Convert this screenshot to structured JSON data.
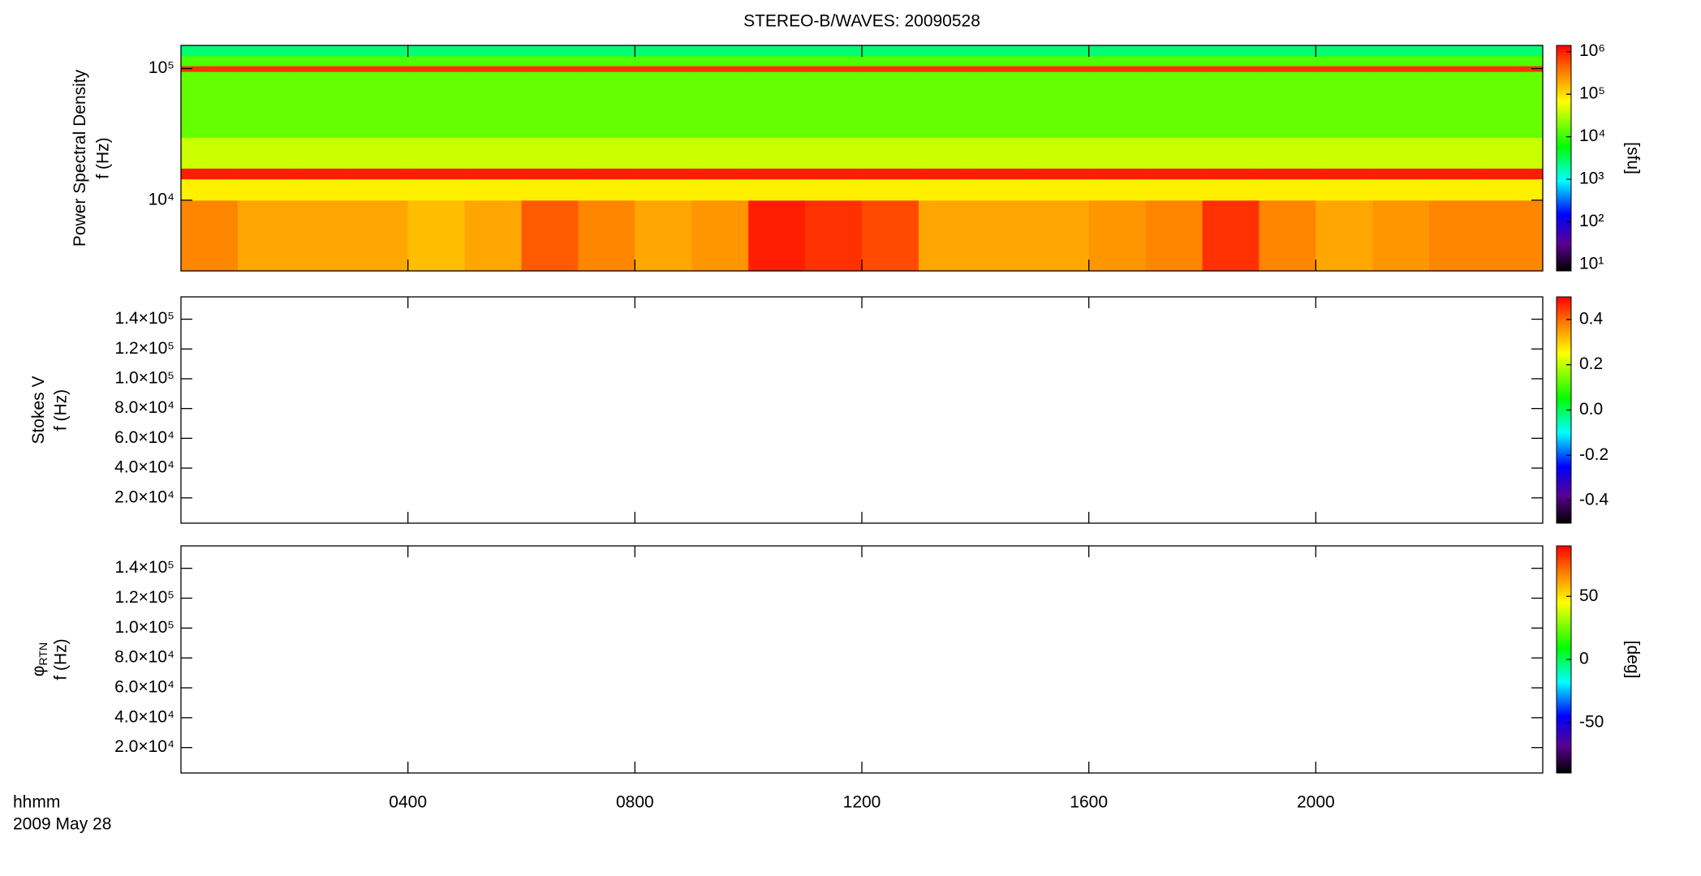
{
  "chart_data": [
    {
      "type": "heatmap",
      "title": "STEREO-B/WAVES: 20090528",
      "ylabel": "Power Spectral Density",
      "ylabel_unit": "f (Hz)",
      "xlim": [
        0,
        24
      ],
      "xticks": [
        4,
        8,
        12,
        16,
        20
      ],
      "ylim": [
        2900,
        150000
      ],
      "ylog": true,
      "yticks": [
        {
          "value": 10000,
          "label": "10⁴"
        },
        {
          "value": 100000,
          "label": "10⁵"
        }
      ],
      "x_edges": [
        0,
        1,
        2,
        3,
        4,
        5,
        6,
        7,
        8,
        9,
        10,
        11,
        12,
        13,
        14,
        15,
        16,
        17,
        18,
        19,
        20,
        21,
        22,
        23,
        24
      ],
      "y_edges": [
        2900,
        10000,
        14500,
        17500,
        30000,
        95000,
        105000,
        125000,
        150000
      ],
      "z": [
        [
          300000,
          200000,
          200000,
          200000,
          150000,
          200000,
          500000,
          300000,
          200000,
          250000,
          1000000,
          800000,
          600000,
          200000,
          200000,
          200000,
          250000,
          300000,
          800000,
          300000,
          200000,
          250000,
          300000,
          300000
        ],
        [
          80000,
          80000,
          80000,
          80000,
          80000,
          80000,
          80000,
          80000,
          80000,
          80000,
          80000,
          80000,
          80000,
          80000,
          80000,
          80000,
          80000,
          80000,
          80000,
          80000,
          80000,
          80000,
          80000,
          80000
        ],
        [
          1000000,
          1000000,
          1000000,
          1000000,
          1000000,
          1000000,
          1000000,
          1000000,
          1000000,
          1000000,
          1000000,
          1000000,
          1000000,
          1000000,
          1000000,
          1000000,
          1000000,
          1000000,
          1000000,
          1000000,
          1000000,
          1000000,
          1000000,
          1000000
        ],
        [
          40000,
          40000,
          40000,
          40000,
          40000,
          40000,
          40000,
          40000,
          40000,
          40000,
          40000,
          40000,
          40000,
          40000,
          40000,
          40000,
          40000,
          40000,
          40000,
          40000,
          40000,
          40000,
          40000,
          40000
        ],
        [
          15000,
          15000,
          15000,
          15000,
          15000,
          15000,
          15000,
          15000,
          15000,
          15000,
          15000,
          15000,
          15000,
          15000,
          15000,
          15000,
          15000,
          15000,
          15000,
          15000,
          15000,
          15000,
          15000,
          15000
        ],
        [
          800000,
          800000,
          800000,
          800000,
          800000,
          800000,
          800000,
          800000,
          800000,
          800000,
          800000,
          800000,
          800000,
          800000,
          800000,
          800000,
          800000,
          800000,
          800000,
          800000,
          800000,
          800000,
          800000,
          800000
        ],
        [
          12000,
          12000,
          12000,
          12000,
          12000,
          12000,
          12000,
          12000,
          12000,
          12000,
          12000,
          12000,
          12000,
          12000,
          12000,
          12000,
          12000,
          12000,
          12000,
          12000,
          12000,
          12000,
          12000,
          12000
        ],
        [
          2500,
          2500,
          2500,
          2500,
          2500,
          2500,
          2500,
          2500,
          2500,
          2500,
          2500,
          2500,
          2500,
          2500,
          2500,
          2500,
          2500,
          2500,
          2500,
          2500,
          2500,
          2500,
          2500,
          2500
        ]
      ],
      "clim": [
        7,
        1400000
      ],
      "clog": true,
      "cticks": [
        {
          "value": 10,
          "label": "10¹"
        },
        {
          "value": 100,
          "label": "10²"
        },
        {
          "value": 1000,
          "label": "10³"
        },
        {
          "value": 10000,
          "label": "10⁴"
        },
        {
          "value": 100000,
          "label": "10⁵"
        },
        {
          "value": 1000000,
          "label": "10⁶"
        }
      ],
      "clabel": "[sfu]"
    },
    {
      "type": "heatmap",
      "ylabel": "Stokes V",
      "ylabel_unit": "f (Hz)",
      "xlim": [
        0,
        24
      ],
      "xticks": [
        4,
        8,
        12,
        16,
        20
      ],
      "ylim": [
        3000,
        155000
      ],
      "yticks": [
        {
          "value": 20000,
          "label": "2.0×10⁴"
        },
        {
          "value": 40000,
          "label": "4.0×10⁴"
        },
        {
          "value": 60000,
          "label": "6.0×10⁴"
        },
        {
          "value": 80000,
          "label": "8.0×10⁴"
        },
        {
          "value": 100000,
          "label": "1.0×10⁵"
        },
        {
          "value": 120000,
          "label": "1.2×10⁵"
        },
        {
          "value": 140000,
          "label": "1.4×10⁵"
        }
      ],
      "clim": [
        -0.5,
        0.5
      ],
      "cticks": [
        -0.4,
        -0.2,
        {
          "value": 0,
          "label": "0.0"
        },
        0.2,
        0.4
      ]
    },
    {
      "type": "heatmap",
      "ylabel": "φ",
      "ylabel_subscript": "RTN",
      "ylabel_unit": "f (Hz)",
      "xlim": [
        0,
        24
      ],
      "xticks": [
        {
          "value": 4,
          "label": "0400"
        },
        {
          "value": 8,
          "label": "0800"
        },
        {
          "value": 12,
          "label": "1200"
        },
        {
          "value": 16,
          "label": "1600"
        },
        {
          "value": 20,
          "label": "2000"
        }
      ],
      "xlabel": "hhmm",
      "date": "2009 May 28",
      "ylim": [
        3000,
        155000
      ],
      "yticks": [
        {
          "value": 20000,
          "label": "2.0×10⁴"
        },
        {
          "value": 40000,
          "label": "4.0×10⁴"
        },
        {
          "value": 60000,
          "label": "6.0×10⁴"
        },
        {
          "value": 80000,
          "label": "8.0×10⁴"
        },
        {
          "value": 100000,
          "label": "1.0×10⁵"
        },
        {
          "value": 120000,
          "label": "1.2×10⁵"
        },
        {
          "value": 140000,
          "label": "1.4×10⁵"
        }
      ],
      "clim": [
        -90,
        90
      ],
      "cticks": [
        -50,
        0,
        50
      ],
      "clabel": "[deg]"
    }
  ]
}
